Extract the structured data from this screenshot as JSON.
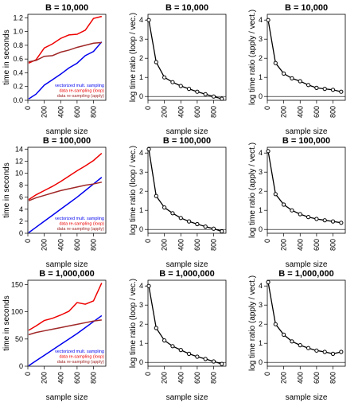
{
  "colors": {
    "blue": "#0000ee",
    "red": "#ee0000",
    "brown": "#a02828",
    "black": "#000000"
  },
  "chart_data": [
    {
      "type": "line",
      "title": "B = 10,000",
      "xlabel": "sample size",
      "ylabel": "time in seconds",
      "xlim": [
        0,
        950
      ],
      "ylim": [
        0,
        1.25
      ],
      "xticks": [
        0,
        200,
        400,
        600,
        800
      ],
      "xtick_labels": [
        "0",
        "200",
        "400",
        "600",
        "800"
      ],
      "yticks": [
        0,
        0.2,
        0.4,
        0.6,
        0.8,
        1.0,
        1.2
      ],
      "ytick_labels": [
        "0.0",
        "0.2",
        "0.4",
        "0.6",
        "0.8",
        "1.0",
        "1.2"
      ],
      "legend_position": "bottom-right",
      "series": [
        {
          "name": "vectorized mult. sampling",
          "color": "#0000ee",
          "x": [
            10,
            100,
            200,
            300,
            400,
            500,
            600,
            700,
            800,
            900
          ],
          "y": [
            0.02,
            0.09,
            0.22,
            0.3,
            0.38,
            0.47,
            0.54,
            0.65,
            0.71,
            0.85
          ]
        },
        {
          "name": "data re-sampling (loop)",
          "color": "#ee0000",
          "x": [
            10,
            100,
            200,
            300,
            400,
            500,
            600,
            700,
            800,
            900
          ],
          "y": [
            0.54,
            0.59,
            0.76,
            0.82,
            0.9,
            0.95,
            0.96,
            1.02,
            1.19,
            1.22
          ]
        },
        {
          "name": "data re-sampling (apply)",
          "color": "#a02828",
          "x": [
            10,
            100,
            200,
            300,
            400,
            500,
            600,
            700,
            800,
            900
          ],
          "y": [
            0.56,
            0.58,
            0.64,
            0.65,
            0.7,
            0.73,
            0.77,
            0.8,
            0.83,
            0.84
          ]
        }
      ]
    },
    {
      "type": "line",
      "title": "B = 10,000",
      "xlabel": "sample size",
      "ylabel": "log time ratio (loop / vec.)",
      "xlim": [
        0,
        950
      ],
      "ylim": [
        -0.2,
        4.3
      ],
      "xticks": [
        0,
        200,
        400,
        600,
        800
      ],
      "xtick_labels": [
        "0",
        "200",
        "400",
        "600",
        "800"
      ],
      "yticks": [
        0,
        1,
        2,
        3,
        4
      ],
      "ytick_labels": [
        "0",
        "1",
        "2",
        "3",
        "4"
      ],
      "hline": 0,
      "series": [
        {
          "x": [
            10,
            100,
            200,
            300,
            400,
            500,
            600,
            700,
            800,
            900
          ],
          "y": [
            4.0,
            1.8,
            1.0,
            0.75,
            0.55,
            0.4,
            0.25,
            0.12,
            0.0,
            -0.12
          ],
          "markers": true
        }
      ]
    },
    {
      "type": "line",
      "title": "B = 10,000",
      "xlabel": "sample size",
      "ylabel": "log time ratio (apply / vect.)",
      "xlim": [
        0,
        950
      ],
      "ylim": [
        -0.2,
        4.3
      ],
      "xticks": [
        0,
        200,
        400,
        600,
        800
      ],
      "xtick_labels": [
        "0",
        "200",
        "400",
        "600",
        "800"
      ],
      "yticks": [
        0,
        1,
        2,
        3,
        4
      ],
      "ytick_labels": [
        "0",
        "1",
        "2",
        "3",
        "4"
      ],
      "hline": 0,
      "series": [
        {
          "x": [
            10,
            100,
            200,
            300,
            400,
            500,
            600,
            700,
            800,
            900
          ],
          "y": [
            4.0,
            1.75,
            1.2,
            0.95,
            0.8,
            0.6,
            0.45,
            0.4,
            0.35,
            0.25
          ],
          "markers": true
        }
      ]
    },
    {
      "type": "line",
      "title": "B = 100,000",
      "xlabel": "sample size",
      "ylabel": "time in seconds",
      "xlim": [
        0,
        950
      ],
      "ylim": [
        0,
        14.3
      ],
      "xticks": [
        0,
        200,
        400,
        600,
        800
      ],
      "xtick_labels": [
        "0",
        "200",
        "400",
        "600",
        "800"
      ],
      "yticks": [
        0,
        2,
        4,
        6,
        8,
        10,
        12,
        14
      ],
      "ytick_labels": [
        "0",
        "2",
        "4",
        "6",
        "8",
        "10",
        "12",
        "14"
      ],
      "legend_position": "bottom-right",
      "series": [
        {
          "name": "vectorized mult. sampling",
          "color": "#0000ee",
          "x": [
            10,
            100,
            200,
            300,
            400,
            500,
            600,
            700,
            800,
            900
          ],
          "y": [
            0.1,
            1.0,
            2.0,
            3.0,
            4.0,
            5.0,
            6.0,
            7.1,
            8.2,
            9.3
          ]
        },
        {
          "name": "data re-sampling (loop)",
          "color": "#ee0000",
          "x": [
            10,
            100,
            200,
            300,
            400,
            500,
            600,
            700,
            800,
            900
          ],
          "y": [
            5.6,
            6.4,
            7.1,
            7.8,
            8.6,
            9.5,
            10.4,
            11.2,
            12.1,
            13.3
          ]
        },
        {
          "name": "data re-sampling (apply)",
          "color": "#a02828",
          "x": [
            10,
            100,
            200,
            300,
            400,
            500,
            600,
            700,
            800,
            900
          ],
          "y": [
            5.4,
            5.9,
            6.3,
            6.7,
            7.1,
            7.4,
            7.7,
            8.0,
            8.2,
            8.5
          ]
        }
      ]
    },
    {
      "type": "line",
      "title": "B = 100,000",
      "xlabel": "sample size",
      "ylabel": "log time ratio (loop / vec.)",
      "xlim": [
        0,
        950
      ],
      "ylim": [
        -0.2,
        4.3
      ],
      "xticks": [
        0,
        200,
        400,
        600,
        800
      ],
      "xtick_labels": [
        "0",
        "200",
        "400",
        "600",
        "800"
      ],
      "yticks": [
        0,
        1,
        2,
        3,
        4
      ],
      "ytick_labels": [
        "0",
        "1",
        "2",
        "3",
        "4"
      ],
      "hline": 0,
      "series": [
        {
          "x": [
            10,
            100,
            200,
            300,
            400,
            500,
            600,
            700,
            800,
            900
          ],
          "y": [
            4.2,
            1.75,
            1.15,
            0.85,
            0.6,
            0.42,
            0.28,
            0.15,
            0.04,
            -0.1
          ],
          "markers": true
        }
      ]
    },
    {
      "type": "line",
      "title": "B = 100,000",
      "xlabel": "sample size",
      "ylabel": "log time ratio (apply / vect.)",
      "xlim": [
        0,
        950
      ],
      "ylim": [
        -0.2,
        4.3
      ],
      "xticks": [
        0,
        200,
        400,
        600,
        800
      ],
      "xtick_labels": [
        "0",
        "200",
        "400",
        "600",
        "800"
      ],
      "yticks": [
        0,
        1,
        2,
        3,
        4
      ],
      "ytick_labels": [
        "0",
        "1",
        "2",
        "3",
        "4"
      ],
      "hline": 0,
      "series": [
        {
          "x": [
            10,
            100,
            200,
            300,
            400,
            500,
            600,
            700,
            800,
            900
          ],
          "y": [
            4.1,
            1.85,
            1.3,
            1.0,
            0.8,
            0.65,
            0.55,
            0.48,
            0.42,
            0.35
          ],
          "markers": true
        }
      ]
    },
    {
      "type": "line",
      "title": "B = 1,000,000",
      "xlabel": "sample size",
      "ylabel": "time in seconds",
      "xlim": [
        0,
        950
      ],
      "ylim": [
        0,
        158
      ],
      "xticks": [
        0,
        200,
        400,
        600,
        800
      ],
      "xtick_labels": [
        "0",
        "200",
        "400",
        "600",
        "800"
      ],
      "yticks": [
        0,
        50,
        100,
        150
      ],
      "ytick_labels": [
        "0",
        "50",
        "100",
        "150"
      ],
      "legend_position": "bottom-right",
      "series": [
        {
          "name": "vectorized mult. sampling",
          "color": "#0000ee",
          "x": [
            10,
            100,
            200,
            300,
            400,
            500,
            600,
            700,
            800,
            900
          ],
          "y": [
            1,
            10,
            20,
            30,
            40,
            50,
            60,
            71,
            82,
            93
          ]
        },
        {
          "name": "data re-sampling (loop)",
          "color": "#ee0000",
          "x": [
            10,
            100,
            200,
            300,
            400,
            500,
            600,
            700,
            800,
            900
          ],
          "y": [
            66,
            74,
            84,
            88,
            94,
            101,
            117,
            114,
            120,
            153
          ]
        },
        {
          "name": "data re-sampling (apply)",
          "color": "#a02828",
          "x": [
            10,
            100,
            200,
            300,
            400,
            500,
            600,
            700,
            800,
            900
          ],
          "y": [
            58,
            62,
            65,
            68,
            71,
            74,
            77,
            80,
            83,
            85
          ]
        }
      ]
    },
    {
      "type": "line",
      "title": "B = 1,000,000",
      "xlabel": "sample size",
      "ylabel": "log time ratio (loop / vec.)",
      "xlim": [
        0,
        950
      ],
      "ylim": [
        -0.2,
        4.3
      ],
      "xticks": [
        0,
        200,
        400,
        600,
        800
      ],
      "xtick_labels": [
        "0",
        "200",
        "400",
        "600",
        "800"
      ],
      "yticks": [
        0,
        1,
        2,
        3,
        4
      ],
      "ytick_labels": [
        "0",
        "1",
        "2",
        "3",
        "4"
      ],
      "hline": 0,
      "series": [
        {
          "x": [
            10,
            100,
            200,
            300,
            400,
            500,
            600,
            700,
            800,
            900
          ],
          "y": [
            4.0,
            1.8,
            1.15,
            0.85,
            0.65,
            0.45,
            0.3,
            0.18,
            0.05,
            -0.08
          ],
          "markers": true
        }
      ]
    },
    {
      "type": "line",
      "title": "B = 1,000,000",
      "xlabel": "sample size",
      "ylabel": "log time ratio (apply / vect.)",
      "xlim": [
        0,
        950
      ],
      "ylim": [
        -0.2,
        4.3
      ],
      "xticks": [
        0,
        200,
        400,
        600,
        800
      ],
      "xtick_labels": [
        "0",
        "200",
        "400",
        "600",
        "800"
      ],
      "yticks": [
        0,
        1,
        2,
        3,
        4
      ],
      "ytick_labels": [
        "0",
        "1",
        "2",
        "3",
        "4"
      ],
      "hline": 0,
      "series": [
        {
          "x": [
            10,
            100,
            200,
            300,
            400,
            500,
            600,
            700,
            800,
            900
          ],
          "y": [
            4.2,
            2.0,
            1.45,
            1.1,
            0.9,
            0.75,
            0.62,
            0.55,
            0.45,
            0.55
          ],
          "markers": true
        }
      ]
    }
  ]
}
